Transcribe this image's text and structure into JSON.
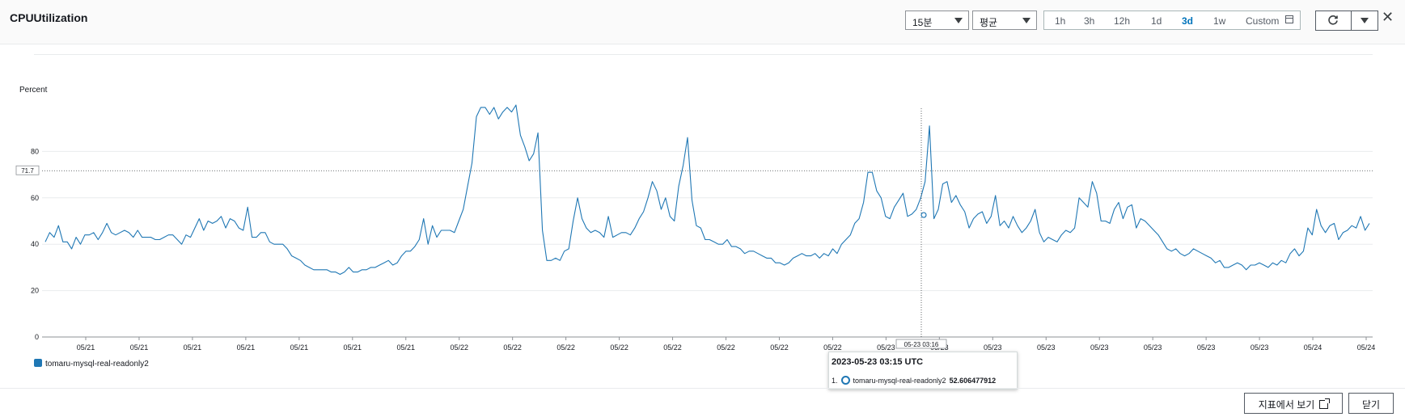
{
  "header": {
    "title": "CPUUtilization",
    "period_select": "15분",
    "stat_select": "평균",
    "ranges": [
      "1h",
      "3h",
      "12h",
      "1d",
      "3d",
      "1w",
      "Custom"
    ],
    "active_range": "3d"
  },
  "chart_data": {
    "type": "line",
    "ylabel": "Percent",
    "ylim": [
      0,
      100
    ],
    "yticks": [
      0,
      20,
      40,
      60,
      80
    ],
    "xtick_labels": [
      "05/21",
      "05/21",
      "05/21",
      "05/21",
      "05/21",
      "05/21",
      "05/21",
      "05/22",
      "05/22",
      "05/22",
      "05/22",
      "05/22",
      "05/22",
      "05/22",
      "05/22",
      "05/23",
      "05/23",
      "05/23",
      "05/23",
      "05/23",
      "05/23",
      "05/23",
      "05/23",
      "05/24",
      "05/24"
    ],
    "crosshair_value_label": "71.7",
    "crosshair_time_label": "05-23 03:16",
    "series": [
      {
        "name": "tomaru-mysql-real-readonly2",
        "color": "#1f77b4",
        "values": [
          41,
          45,
          43,
          48,
          41,
          41,
          38,
          43,
          40,
          44,
          44,
          45,
          42,
          45,
          49,
          45,
          44,
          45,
          46,
          45,
          43,
          46,
          43,
          43,
          43,
          42,
          42,
          43,
          44,
          44,
          42,
          40,
          44,
          43,
          47,
          51,
          46,
          50,
          49,
          50,
          52,
          47,
          51,
          50,
          47,
          46,
          56,
          43,
          43,
          45,
          45,
          41,
          40,
          40,
          40,
          38,
          35,
          34,
          33,
          31,
          30,
          29,
          29,
          29,
          29,
          28,
          28,
          27,
          28,
          30,
          28,
          28,
          29,
          29,
          30,
          30,
          31,
          32,
          33,
          31,
          32,
          35,
          37,
          37,
          39,
          42,
          51,
          40,
          48,
          43,
          46,
          46,
          46,
          45,
          50,
          55,
          65,
          75,
          95,
          99,
          99,
          96,
          99,
          94,
          97,
          99,
          97,
          100,
          87,
          82,
          76,
          79,
          88,
          46,
          33,
          33,
          34,
          33,
          37,
          38,
          50,
          60,
          51,
          47,
          45,
          46,
          45,
          43,
          52,
          43,
          44,
          45,
          45,
          44,
          47,
          51,
          54,
          60,
          67,
          63,
          55,
          60,
          52,
          50,
          65,
          74,
          86,
          59,
          48,
          47,
          42,
          42,
          41,
          40,
          40,
          42,
          39,
          39,
          38,
          36,
          37,
          37,
          36,
          35,
          34,
          34,
          32,
          32,
          31,
          32,
          34,
          35,
          36,
          35,
          35,
          36,
          34,
          36,
          35,
          38,
          36,
          40,
          42,
          44,
          49,
          51,
          58,
          71,
          71,
          63,
          60,
          52,
          51,
          56,
          59,
          62,
          52,
          53,
          55,
          60,
          67,
          91,
          51,
          55,
          66,
          67,
          58,
          61,
          57,
          54,
          47,
          51,
          53,
          54,
          49,
          52,
          61,
          48,
          50,
          47,
          52,
          48,
          45,
          47,
          50,
          55,
          45,
          41,
          43,
          42,
          41,
          44,
          46,
          45,
          47,
          60,
          58,
          56,
          67,
          62,
          50,
          50,
          49,
          55,
          58,
          51,
          56,
          57,
          47,
          51,
          50,
          48,
          46,
          44,
          41,
          38,
          37,
          38,
          36,
          35,
          36,
          38,
          37,
          36,
          35,
          34,
          32,
          33,
          30,
          30,
          31,
          32,
          31,
          29,
          31,
          31,
          32,
          31,
          30,
          32,
          31,
          33,
          32,
          36,
          38,
          35,
          37,
          47,
          44,
          55,
          48,
          45,
          48,
          49,
          42,
          45,
          46,
          48,
          47,
          52,
          46,
          49
        ]
      }
    ],
    "tooltip": {
      "time": "2023-05-23 03:15 UTC",
      "index": "1.",
      "series": "tomaru-mysql-real-readonly2",
      "value": "52.606477912"
    }
  },
  "footer": {
    "view_in_metrics": "지표에서 보기",
    "close": "닫기"
  },
  "colors": {
    "accent": "#0073bb",
    "series": "#1f77b4"
  }
}
